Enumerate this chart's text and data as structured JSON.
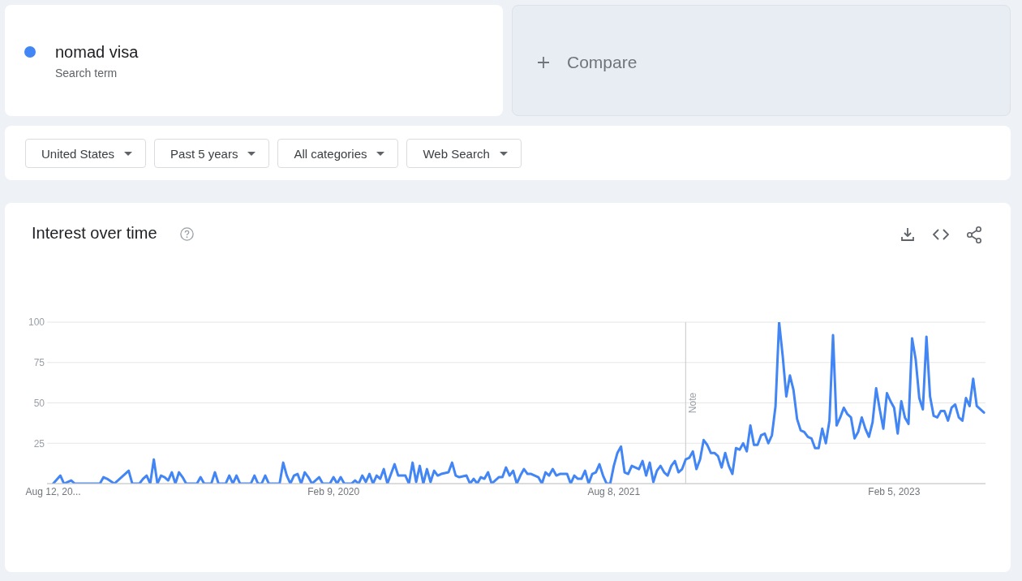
{
  "chart_data": {
    "type": "line",
    "title": "Interest over time",
    "annotations": [
      "Search term",
      "Compare",
      "United States",
      "Past 5 years",
      "All categories",
      "Web Search"
    ],
    "x": [
      "2018-08-12",
      "2018-08-26",
      "2018-09-02",
      "2018-09-16",
      "2018-09-23",
      "2018-11-11",
      "2018-11-18",
      "2018-11-25",
      "2018-12-09",
      "2018-12-23",
      "2019-01-06",
      "2019-01-13",
      "2019-01-27",
      "2019-02-03",
      "2019-02-10",
      "2019-02-17",
      "2019-02-24",
      "2019-03-03",
      "2019-03-10",
      "2019-03-17",
      "2019-03-24",
      "2019-03-31",
      "2019-04-07",
      "2019-04-14",
      "2019-04-21",
      "2019-04-28",
      "2019-05-19",
      "2019-05-26",
      "2019-06-02",
      "2019-06-16",
      "2019-06-23",
      "2019-06-30",
      "2019-07-14",
      "2019-07-21",
      "2019-07-28",
      "2019-08-04",
      "2019-08-11",
      "2019-09-01",
      "2019-09-08",
      "2019-09-15",
      "2019-09-22",
      "2019-09-29",
      "2019-10-06",
      "2019-10-27",
      "2019-11-03",
      "2019-11-10",
      "2019-11-17",
      "2019-11-24",
      "2019-12-01",
      "2019-12-08",
      "2019-12-15",
      "2019-12-22",
      "2019-12-29",
      "2020-01-12",
      "2020-01-19",
      "2020-02-02",
      "2020-02-09",
      "2020-02-16",
      "2020-02-23",
      "2020-03-01",
      "2020-03-15",
      "2020-03-22",
      "2020-03-29",
      "2020-04-05",
      "2020-04-12",
      "2020-04-19",
      "2020-04-26",
      "2020-05-03",
      "2020-05-10",
      "2020-05-17",
      "2020-05-24",
      "2020-05-31",
      "2020-06-07",
      "2020-06-14",
      "2020-06-28",
      "2020-07-05",
      "2020-07-12",
      "2020-07-19",
      "2020-07-26",
      "2020-08-02",
      "2020-08-09",
      "2020-08-16",
      "2020-08-23",
      "2020-08-30",
      "2020-09-06",
      "2020-09-20",
      "2020-09-27",
      "2020-10-04",
      "2020-10-11",
      "2020-10-25",
      "2020-11-01",
      "2020-11-08",
      "2020-11-15",
      "2020-11-22",
      "2020-11-29",
      "2020-12-06",
      "2020-12-13",
      "2020-12-20",
      "2020-12-27",
      "2021-01-03",
      "2021-01-10",
      "2021-01-17",
      "2021-01-24",
      "2021-01-31",
      "2021-02-07",
      "2021-02-14",
      "2021-02-21",
      "2021-02-28",
      "2021-03-14",
      "2021-03-21",
      "2021-03-28",
      "2021-04-04",
      "2021-04-11",
      "2021-04-18",
      "2021-04-25",
      "2021-05-09",
      "2021-05-16",
      "2021-05-23",
      "2021-05-30",
      "2021-06-06",
      "2021-06-13",
      "2021-06-20",
      "2021-06-27",
      "2021-07-04",
      "2021-07-11",
      "2021-07-18",
      "2021-07-25",
      "2021-08-01",
      "2021-08-08",
      "2021-08-15",
      "2021-08-22",
      "2021-08-29",
      "2021-09-05",
      "2021-09-12",
      "2021-09-19",
      "2021-09-26",
      "2021-10-03",
      "2021-10-10",
      "2021-10-17",
      "2021-10-24",
      "2021-10-31",
      "2021-11-07",
      "2021-11-14",
      "2021-11-21",
      "2021-11-28",
      "2021-12-05",
      "2021-12-12",
      "2021-12-19",
      "2021-12-26",
      "2022-01-02",
      "2022-01-09",
      "2022-01-16",
      "2022-01-23",
      "2022-01-30",
      "2022-02-06",
      "2022-02-13",
      "2022-02-20",
      "2022-02-27",
      "2022-03-06",
      "2022-03-13",
      "2022-03-20",
      "2022-03-27",
      "2022-04-03",
      "2022-04-10",
      "2022-04-17",
      "2022-04-24",
      "2022-05-01",
      "2022-05-08",
      "2022-05-15",
      "2022-05-22",
      "2022-05-29",
      "2022-06-05",
      "2022-06-12",
      "2022-06-19",
      "2022-06-26",
      "2022-07-03",
      "2022-07-10",
      "2022-07-17",
      "2022-07-24",
      "2022-07-31",
      "2022-08-07",
      "2022-08-14",
      "2022-08-21",
      "2022-08-28",
      "2022-09-04",
      "2022-09-11",
      "2022-09-18",
      "2022-09-25",
      "2022-10-02",
      "2022-10-09",
      "2022-10-16",
      "2022-10-23",
      "2022-10-30",
      "2022-11-06",
      "2022-11-13",
      "2022-11-20",
      "2022-11-27",
      "2022-12-04",
      "2022-12-11",
      "2022-12-18",
      "2022-12-25",
      "2023-01-01",
      "2023-01-08",
      "2023-01-15",
      "2023-01-22",
      "2023-01-29",
      "2023-02-05",
      "2023-02-12",
      "2023-02-19",
      "2023-02-26",
      "2023-03-05",
      "2023-03-12",
      "2023-03-19",
      "2023-03-26",
      "2023-04-02",
      "2023-04-09",
      "2023-04-16",
      "2023-04-23",
      "2023-04-30",
      "2023-05-07",
      "2023-05-14",
      "2023-05-21",
      "2023-05-28",
      "2023-06-04",
      "2023-06-11",
      "2023-06-18",
      "2023-06-25",
      "2023-07-02",
      "2023-07-09",
      "2023-07-16",
      "2023-07-23",
      "2023-07-30"
    ],
    "series": [
      {
        "name": "nomad visa",
        "color": "#4285f4",
        "values": [
          0,
          5,
          0,
          2,
          0,
          0,
          4,
          3,
          0,
          4,
          8,
          0,
          0,
          3,
          5,
          0,
          15,
          0,
          5,
          4,
          2,
          7,
          0,
          7,
          4,
          0,
          0,
          4,
          0,
          0,
          7,
          0,
          0,
          5,
          0,
          5,
          0,
          0,
          5,
          0,
          0,
          5,
          0,
          0,
          13,
          5,
          0,
          5,
          6,
          0,
          7,
          4,
          0,
          4,
          0,
          0,
          4,
          0,
          4,
          0,
          0,
          2,
          0,
          5,
          1,
          6,
          0,
          5,
          3,
          9,
          0,
          6,
          12,
          5,
          5,
          0,
          13,
          1,
          11,
          0,
          9,
          1,
          8,
          5,
          6,
          7,
          13,
          5,
          4,
          5,
          0,
          3,
          0,
          4,
          3,
          7,
          0,
          2,
          4,
          4,
          10,
          5,
          8,
          0,
          5,
          9,
          6,
          6,
          4,
          0,
          7,
          5,
          9,
          5,
          6,
          6,
          0,
          5,
          3,
          3,
          8,
          0,
          6,
          7,
          12,
          5,
          0,
          0,
          11,
          19,
          23,
          7,
          6,
          11,
          10,
          9,
          14,
          5,
          13,
          1,
          8,
          11,
          7,
          5,
          11,
          14,
          7,
          9,
          15,
          16,
          20,
          9,
          15,
          27,
          24,
          19,
          19,
          17,
          10,
          19,
          11,
          6,
          22,
          21,
          25,
          20,
          36,
          24,
          24,
          30,
          31,
          25,
          30,
          48,
          100,
          79,
          54,
          67,
          58,
          40,
          33,
          32,
          29,
          28,
          22,
          22,
          34,
          25,
          39,
          92,
          36,
          41,
          47,
          43,
          41,
          28,
          32,
          41,
          34,
          29,
          38,
          59,
          46,
          34,
          56,
          51,
          47,
          31,
          51,
          41,
          37,
          90,
          77,
          53,
          46,
          91,
          54,
          42,
          41,
          45,
          45,
          39,
          47,
          49,
          41,
          39,
          53,
          48,
          65,
          48,
          46,
          44
        ]
      }
    ],
    "xlim": [
      "2018-07-31",
      "2023-08-02"
    ],
    "xticks": [
      {
        "value": "2018-08-12",
        "label": "Aug 12, 20..."
      },
      {
        "value": "2020-02-09",
        "label": "Feb 9, 2020"
      },
      {
        "value": "2021-08-08",
        "label": "Aug 8, 2021"
      },
      {
        "value": "2023-02-05",
        "label": "Feb 5, 2023"
      }
    ],
    "ylim": [
      0,
      100
    ],
    "yticks": [
      25,
      50,
      75,
      100
    ],
    "grid": "y",
    "legend": "top left",
    "ref_lines": [
      {
        "axis": "x",
        "value": "2021-12-26",
        "label": "Note",
        "color": "#d0d0d0"
      }
    ]
  }
}
